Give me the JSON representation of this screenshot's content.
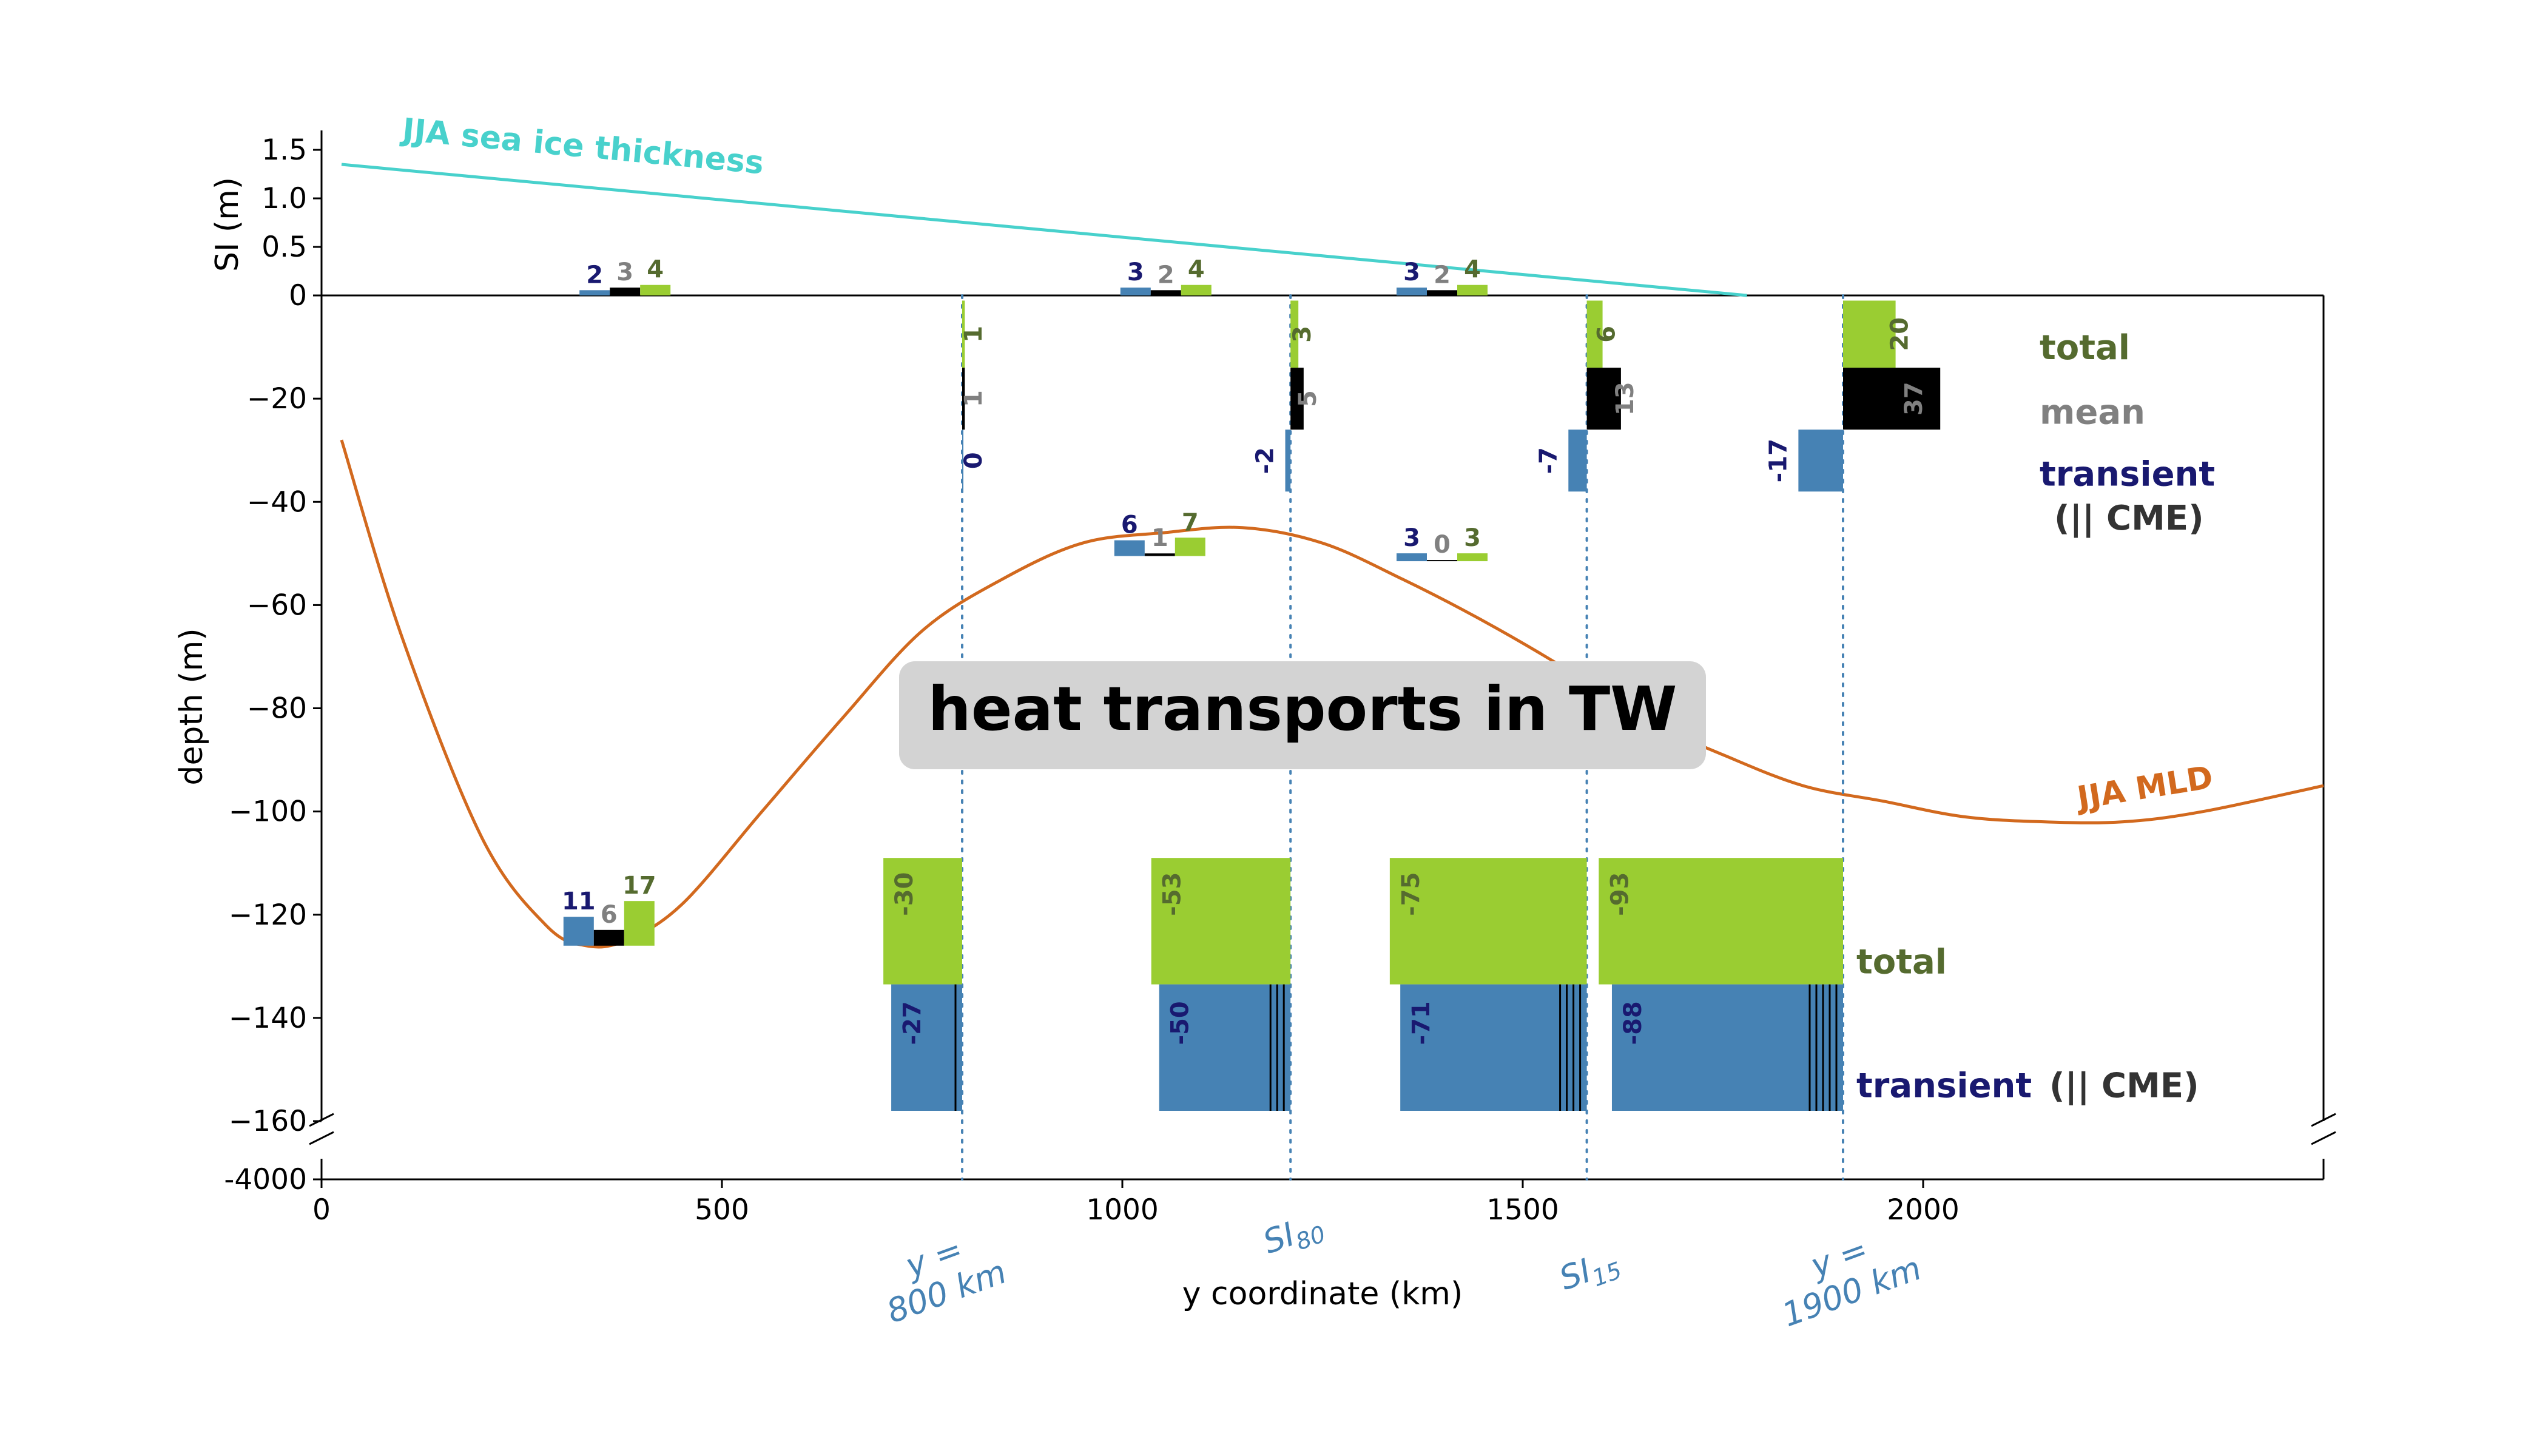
{
  "chart_data": {
    "type": "bar",
    "title": "heat transports in TW",
    "xlabel": "y coordinate (km)",
    "xlim": [
      0,
      2500
    ],
    "x_ticks": [
      "0",
      "500",
      "1000",
      "1500",
      "2000"
    ],
    "top_panel": {
      "ylabel": "SI (m)",
      "ylim": [
        0,
        1.7
      ],
      "y_ticks": [
        "1.5",
        "1.0",
        "0.5",
        "0"
      ],
      "sea_ice_label": "JJA sea ice thickness",
      "sea_ice_thickness": {
        "x": [
          25,
          1780
        ],
        "y": [
          1.35,
          0
        ]
      },
      "vertical_transports": [
        {
          "y": 360,
          "transient": 2,
          "mean": 3,
          "total": 4
        },
        {
          "y": 990,
          "transient": 3,
          "mean": 2,
          "total": 4
        },
        {
          "y": 1350,
          "transient": 3,
          "mean": 2,
          "total": 4
        }
      ]
    },
    "depth_panel": {
      "ylabel": "depth (m)",
      "ylim": [
        -160,
        0
      ],
      "y_ticks": [
        "0",
        "−20",
        "−40",
        "−60",
        "−80",
        "−100",
        "−120",
        "−140",
        "−160"
      ],
      "broken_axis_tick": "-4000",
      "mld_label": "JJA MLD",
      "mld": [
        [
          25,
          -28
        ],
        [
          100,
          -66
        ],
        [
          200,
          -105
        ],
        [
          280,
          -122
        ],
        [
          330,
          -126
        ],
        [
          380,
          -125
        ],
        [
          450,
          -118
        ],
        [
          550,
          -100
        ],
        [
          650,
          -82
        ],
        [
          750,
          -65
        ],
        [
          850,
          -55
        ],
        [
          950,
          -48
        ],
        [
          1050,
          -46
        ],
        [
          1150,
          -45
        ],
        [
          1250,
          -48
        ],
        [
          1350,
          -55
        ],
        [
          1450,
          -63
        ],
        [
          1550,
          -72
        ],
        [
          1650,
          -82
        ],
        [
          1750,
          -89
        ],
        [
          1850,
          -95
        ],
        [
          1950,
          -98
        ],
        [
          2050,
          -101
        ],
        [
          2150,
          -102
        ],
        [
          2250,
          -102
        ],
        [
          2350,
          -100
        ],
        [
          2500,
          -95
        ]
      ],
      "section_lines": [
        {
          "x": 800,
          "label": "y =\n800 km"
        },
        {
          "x": 1210,
          "label": "SI",
          "sub": "80"
        },
        {
          "x": 1580,
          "label": "SI",
          "sub": "15"
        },
        {
          "x": 1900,
          "label": "y =\n1900 km"
        }
      ],
      "upper_layer_transports": [
        {
          "x": 800,
          "total": 1,
          "mean": 1,
          "transient": 0
        },
        {
          "x": 1210,
          "total": 3,
          "mean": 5,
          "transient": -2
        },
        {
          "x": 1580,
          "total": 6,
          "mean": 13,
          "transient": -7
        },
        {
          "x": 1900,
          "total": 20,
          "mean": 37,
          "transient": -17
        }
      ],
      "mid_vertical_transports": [
        {
          "y": 990,
          "transient": 6,
          "mean": 1,
          "total": 7
        },
        {
          "y": 1350,
          "transient": 3,
          "mean": 0,
          "total": 3
        },
        {
          "y": 340,
          "transient": 11,
          "mean": 6,
          "total": 17
        }
      ],
      "deep_transports": [
        {
          "x": 800,
          "total": -30,
          "transient": -27
        },
        {
          "x": 1210,
          "total": -53,
          "transient": -50
        },
        {
          "x": 1580,
          "total": -75,
          "transient": -71
        },
        {
          "x": 1900,
          "total": -93,
          "transient": -88
        }
      ],
      "legend_upper": [
        "total",
        "mean",
        "transient",
        "(|| CME)"
      ],
      "legend_lower": [
        "total",
        "transient",
        "(|| CME)"
      ]
    },
    "colors": {
      "total": "#9acd32",
      "mean": "#000000",
      "transient": "#4682b4",
      "sea_ice": "#48d1cc",
      "mld": "#d2691e",
      "total_label": "#556b2f",
      "mean_label": "#808080",
      "transient_label": "#191970",
      "section_line": "#4682b4"
    }
  }
}
